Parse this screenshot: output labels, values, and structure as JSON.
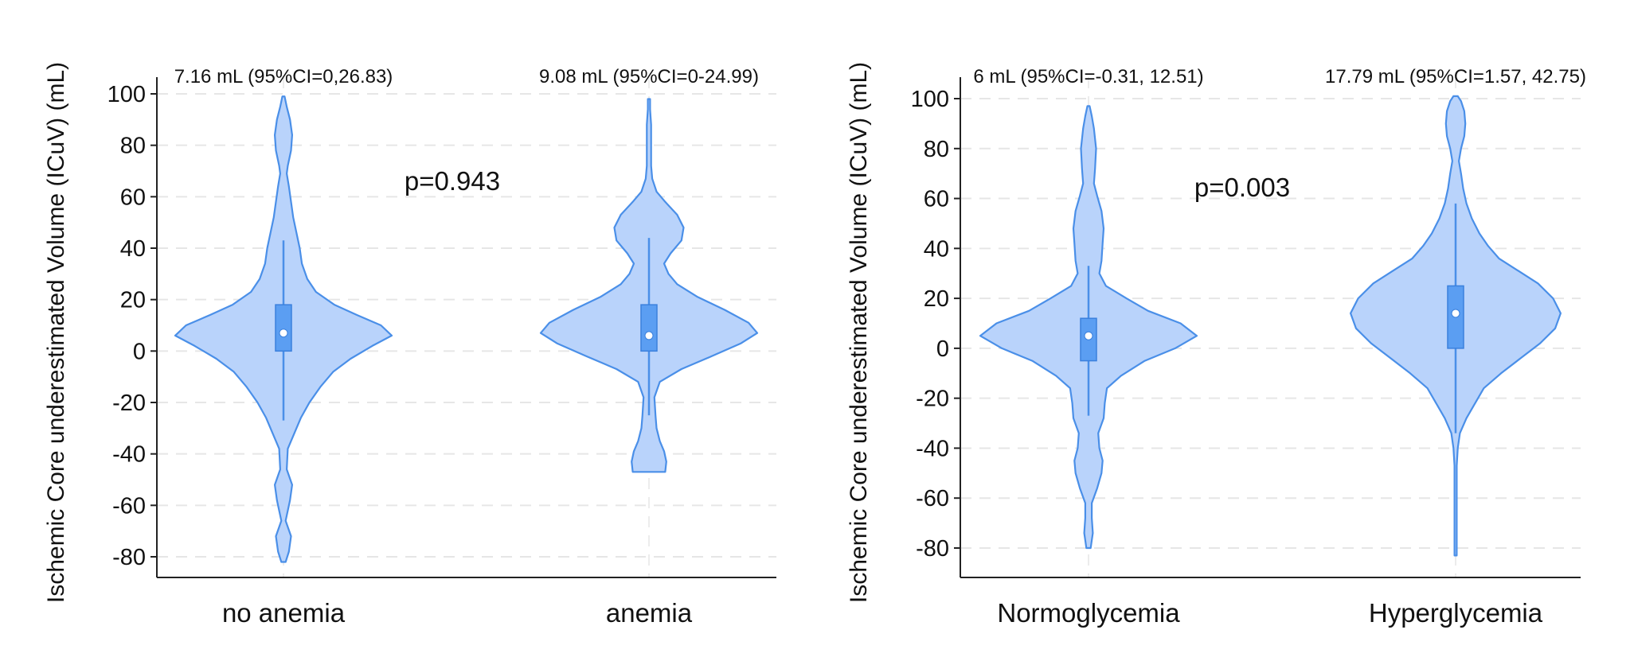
{
  "chart_data": [
    {
      "type": "violin",
      "ylabel": "Ischemic Core underestimated Volume (ICuV) (mL)",
      "ylim": [
        -85,
        105
      ],
      "yticks": [
        100,
        80,
        60,
        40,
        20,
        0,
        -20,
        -40,
        -60,
        -80
      ],
      "ytick_labels": [
        "100",
        "80",
        "60",
        "40",
        "20",
        "0",
        "-20",
        "-40",
        "-60",
        "-80"
      ],
      "grid": true,
      "p_value_label": "p=0.943",
      "groups": [
        {
          "name": "no anemia",
          "annotation": "7.16 mL (95%CI=0,26.83)",
          "median": 7,
          "q1": 0,
          "q3": 18,
          "whisker_low": -27,
          "whisker_high": 43,
          "min": -82,
          "max": 99,
          "density": [
            [
              -82,
              0.02
            ],
            [
              -78,
              0.05
            ],
            [
              -72,
              0.07
            ],
            [
              -66,
              0.02
            ],
            [
              -58,
              0.06
            ],
            [
              -52,
              0.08
            ],
            [
              -46,
              0.03
            ],
            [
              -38,
              0.04
            ],
            [
              -32,
              0.1
            ],
            [
              -26,
              0.16
            ],
            [
              -20,
              0.24
            ],
            [
              -14,
              0.34
            ],
            [
              -8,
              0.46
            ],
            [
              -3,
              0.62
            ],
            [
              2,
              0.82
            ],
            [
              6,
              1.0
            ],
            [
              10,
              0.9
            ],
            [
              14,
              0.68
            ],
            [
              18,
              0.47
            ],
            [
              23,
              0.3
            ],
            [
              28,
              0.22
            ],
            [
              34,
              0.17
            ],
            [
              40,
              0.15
            ],
            [
              46,
              0.12
            ],
            [
              52,
              0.09
            ],
            [
              58,
              0.07
            ],
            [
              64,
              0.05
            ],
            [
              69,
              0.03
            ],
            [
              72,
              0.04
            ],
            [
              78,
              0.07
            ],
            [
              84,
              0.08
            ],
            [
              90,
              0.06
            ],
            [
              95,
              0.03
            ],
            [
              99,
              0.01
            ]
          ]
        },
        {
          "name": "anemia",
          "annotation": "9.08 mL (95%CI=0-24.99)",
          "median": 6,
          "q1": 0,
          "q3": 18,
          "whisker_low": -25,
          "whisker_high": 44,
          "min": -47,
          "max": 98,
          "density": [
            [
              -47,
              0.15
            ],
            [
              -43,
              0.16
            ],
            [
              -39,
              0.14
            ],
            [
              -35,
              0.1
            ],
            [
              -30,
              0.07
            ],
            [
              -25,
              0.06
            ],
            [
              -18,
              0.05
            ],
            [
              -12,
              0.1
            ],
            [
              -7,
              0.3
            ],
            [
              -2,
              0.58
            ],
            [
              3,
              0.85
            ],
            [
              7,
              1.0
            ],
            [
              11,
              0.92
            ],
            [
              16,
              0.7
            ],
            [
              21,
              0.45
            ],
            [
              26,
              0.26
            ],
            [
              30,
              0.18
            ],
            [
              34,
              0.14
            ],
            [
              38,
              0.2
            ],
            [
              43,
              0.3
            ],
            [
              48,
              0.32
            ],
            [
              53,
              0.26
            ],
            [
              58,
              0.15
            ],
            [
              62,
              0.07
            ],
            [
              67,
              0.03
            ],
            [
              72,
              0.02
            ],
            [
              80,
              0.02
            ],
            [
              88,
              0.02
            ],
            [
              94,
              0.01
            ],
            [
              98,
              0.01
            ]
          ]
        }
      ]
    },
    {
      "type": "violin",
      "ylabel": "Ischemic Core underestimated Volume (ICuV) (mL)",
      "ylim": [
        -85,
        108
      ],
      "yticks": [
        100,
        80,
        60,
        40,
        20,
        0,
        -20,
        -40,
        -60,
        -80
      ],
      "ytick_labels": [
        "100",
        "80",
        "60",
        "40",
        "20",
        "0",
        "-20",
        "-40",
        "-60",
        "-80"
      ],
      "grid": true,
      "p_value_label": "p=0.003",
      "groups": [
        {
          "name": "Normoglycemia",
          "annotation": "6 mL (95%CI=-0.31, 12.51)",
          "median": 5,
          "q1": -5,
          "q3": 12,
          "whisker_low": -27,
          "whisker_high": 33,
          "min": -80,
          "max": 97,
          "density": [
            [
              -80,
              0.02
            ],
            [
              -74,
              0.04
            ],
            [
              -68,
              0.03
            ],
            [
              -62,
              0.03
            ],
            [
              -56,
              0.08
            ],
            [
              -50,
              0.12
            ],
            [
              -45,
              0.13
            ],
            [
              -40,
              0.1
            ],
            [
              -34,
              0.09
            ],
            [
              -28,
              0.14
            ],
            [
              -22,
              0.15
            ],
            [
              -16,
              0.17
            ],
            [
              -11,
              0.3
            ],
            [
              -5,
              0.52
            ],
            [
              0,
              0.8
            ],
            [
              5,
              1.0
            ],
            [
              10,
              0.85
            ],
            [
              15,
              0.55
            ],
            [
              20,
              0.35
            ],
            [
              25,
              0.16
            ],
            [
              30,
              0.1
            ],
            [
              35,
              0.12
            ],
            [
              42,
              0.13
            ],
            [
              48,
              0.14
            ],
            [
              55,
              0.12
            ],
            [
              61,
              0.08
            ],
            [
              66,
              0.05
            ],
            [
              72,
              0.06
            ],
            [
              80,
              0.07
            ],
            [
              88,
              0.05
            ],
            [
              93,
              0.03
            ],
            [
              97,
              0.01
            ]
          ]
        },
        {
          "name": "Hyperglycemia",
          "annotation": "17.79 mL (95%CI=1.57, 42.75)",
          "median": 14,
          "q1": 0,
          "q3": 25,
          "whisker_low": -34,
          "whisker_high": 58,
          "min": -83,
          "max": 101,
          "density": [
            [
              -83,
              0.01
            ],
            [
              -75,
              0.01
            ],
            [
              -65,
              0.01
            ],
            [
              -55,
              0.01
            ],
            [
              -47,
              0.01
            ],
            [
              -40,
              0.02
            ],
            [
              -34,
              0.04
            ],
            [
              -28,
              0.1
            ],
            [
              -22,
              0.18
            ],
            [
              -16,
              0.26
            ],
            [
              -10,
              0.42
            ],
            [
              -4,
              0.6
            ],
            [
              2,
              0.78
            ],
            [
              8,
              0.92
            ],
            [
              14,
              0.97
            ],
            [
              20,
              0.9
            ],
            [
              26,
              0.76
            ],
            [
              31,
              0.58
            ],
            [
              36,
              0.4
            ],
            [
              41,
              0.3
            ],
            [
              46,
              0.22
            ],
            [
              52,
              0.15
            ],
            [
              58,
              0.1
            ],
            [
              64,
              0.07
            ],
            [
              70,
              0.05
            ],
            [
              75,
              0.03
            ],
            [
              80,
              0.05
            ],
            [
              85,
              0.08
            ],
            [
              90,
              0.09
            ],
            [
              95,
              0.08
            ],
            [
              99,
              0.05
            ],
            [
              101,
              0.02
            ]
          ]
        }
      ]
    }
  ]
}
